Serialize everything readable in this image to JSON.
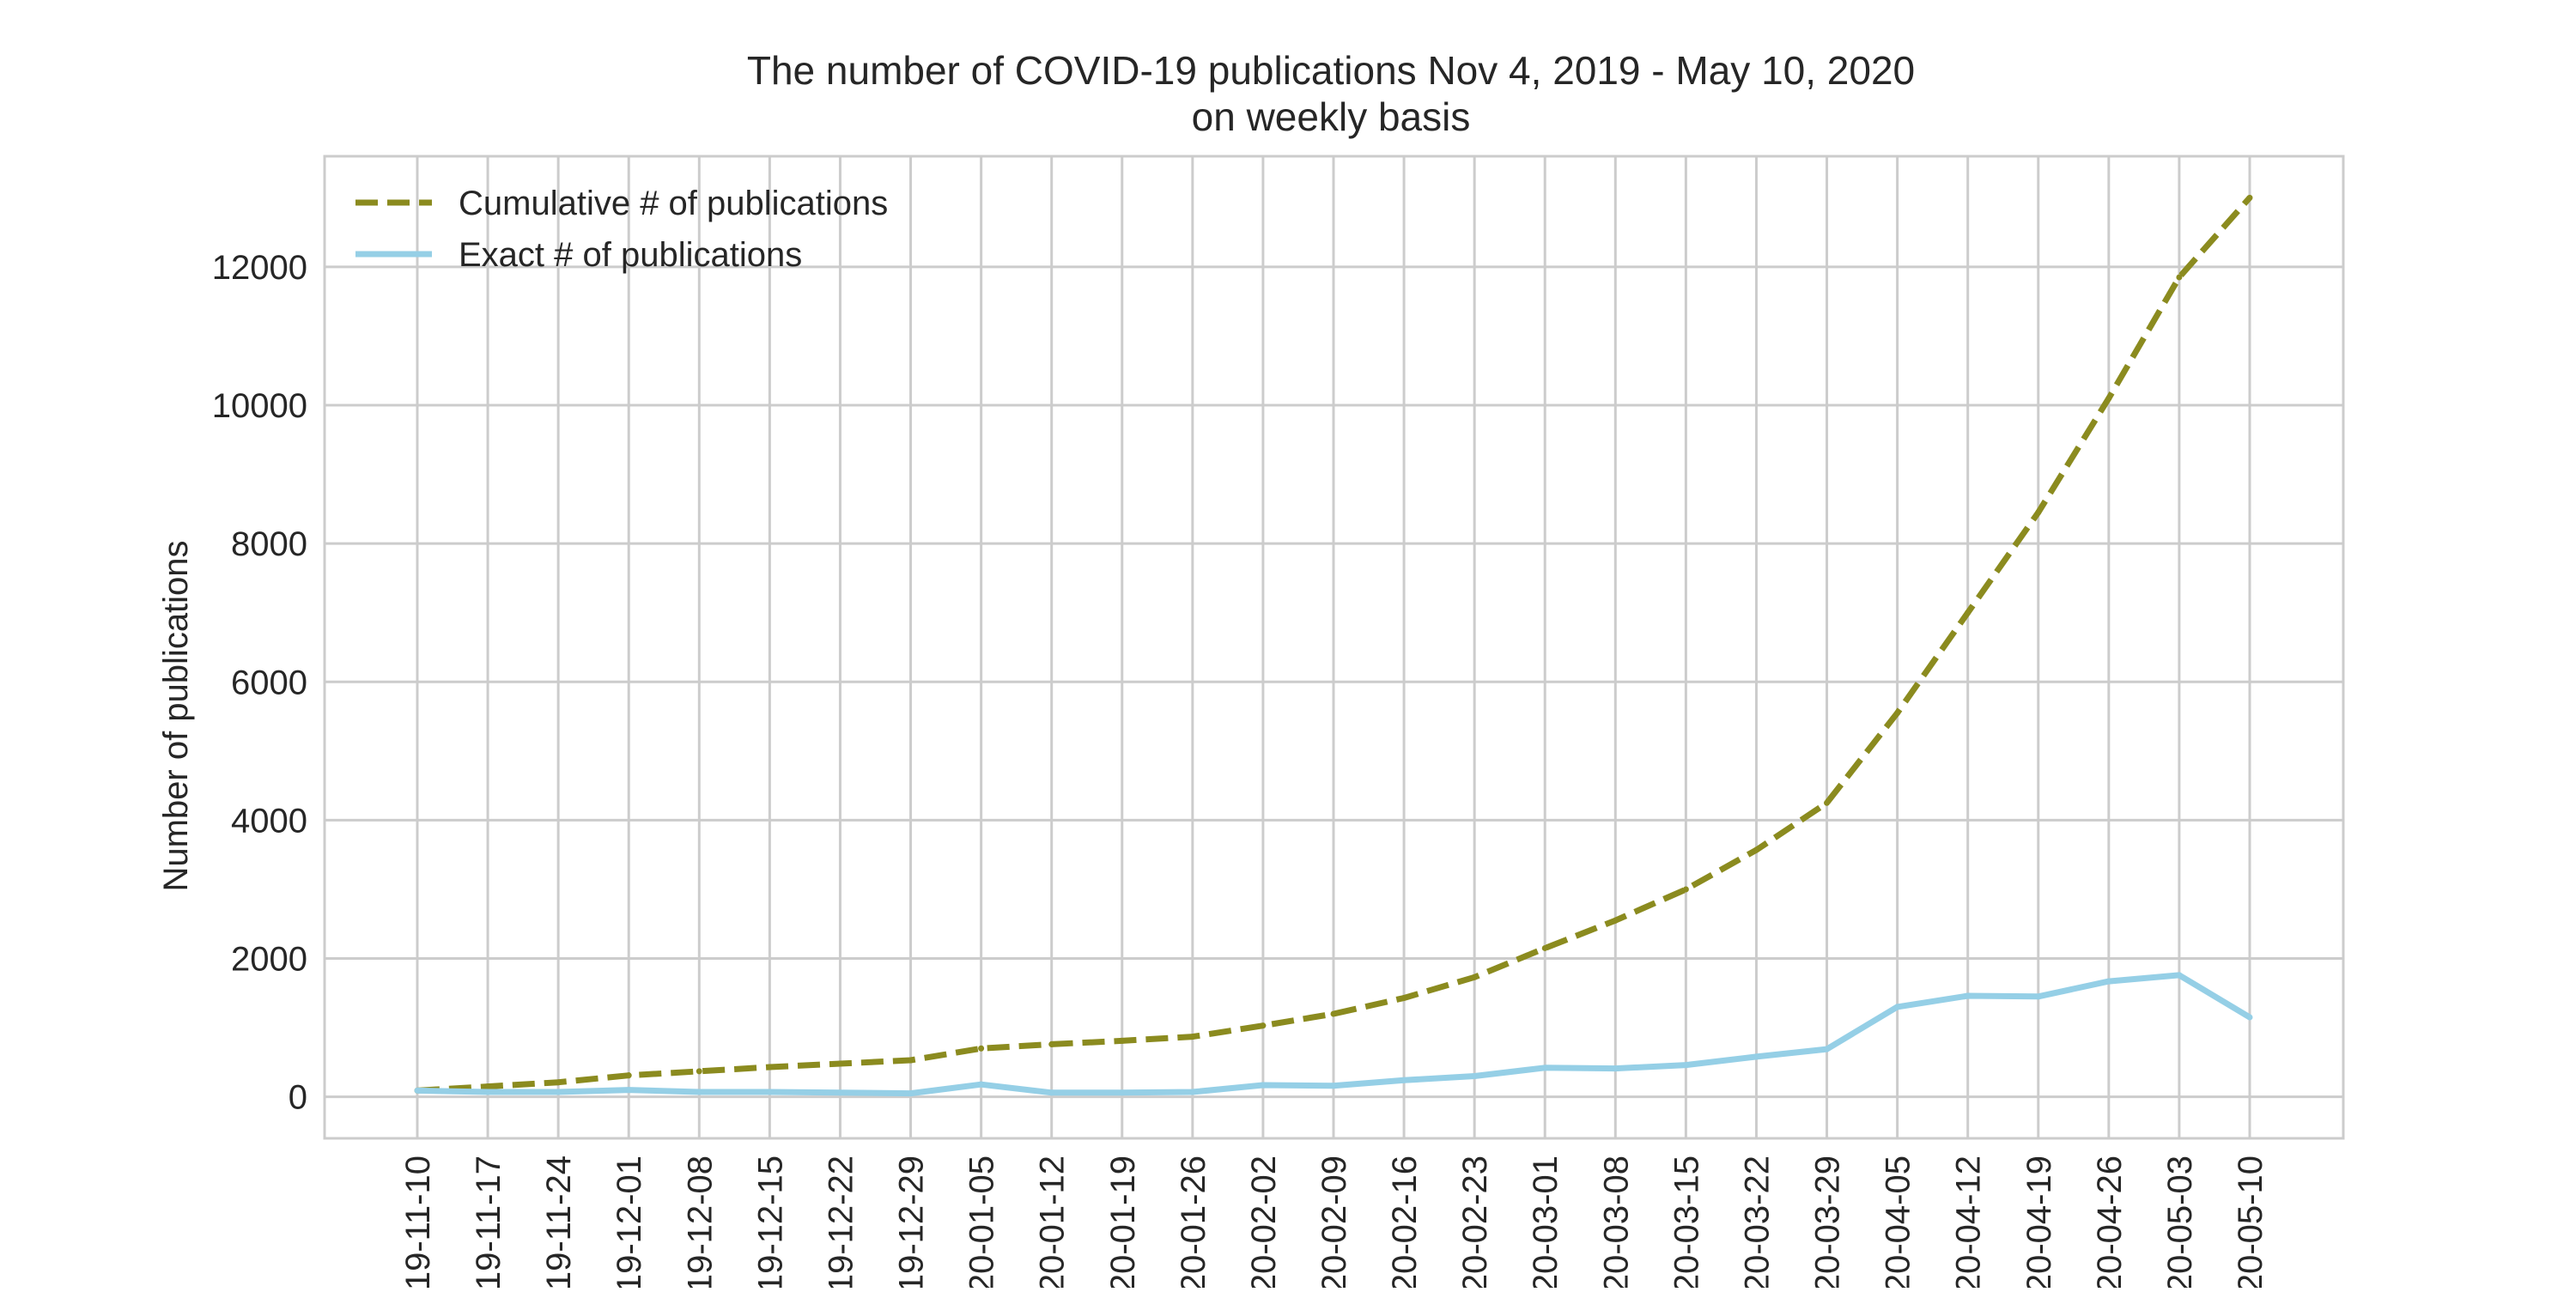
{
  "chart_data": {
    "type": "line",
    "title_line1": "The number of COVID-19 publications Nov 4, 2019 - May 10, 2020",
    "title_line2": "on weekly basis",
    "xlabel": "",
    "ylabel": "Number of publications",
    "ylim": [
      -600,
      13600
    ],
    "yticks": [
      0,
      2000,
      4000,
      6000,
      8000,
      10000,
      12000
    ],
    "grid": true,
    "legend_position": "top-left",
    "categories": [
      "19-11-10",
      "19-11-17",
      "19-11-24",
      "19-12-01",
      "19-12-08",
      "19-12-15",
      "19-12-22",
      "19-12-29",
      "20-01-05",
      "20-01-12",
      "20-01-19",
      "20-01-26",
      "20-02-02",
      "20-02-09",
      "20-02-16",
      "20-02-23",
      "20-03-01",
      "20-03-08",
      "20-03-15",
      "20-03-22",
      "20-03-29",
      "20-04-05",
      "20-04-12",
      "20-04-19",
      "20-04-26",
      "20-05-03",
      "20-05-10"
    ],
    "series": [
      {
        "name": "Cumulative # of publications",
        "style": "dashed",
        "color": "#8b8b1f",
        "values": [
          90,
          150,
          210,
          310,
          370,
          430,
          480,
          530,
          700,
          760,
          810,
          870,
          1030,
          1200,
          1430,
          1730,
          2150,
          2550,
          3000,
          3570,
          4250,
          5550,
          7000,
          8450,
          10100,
          11850,
          13000
        ]
      },
      {
        "name": "Exact # of publications",
        "style": "solid",
        "color": "#95cfe6",
        "values": [
          90,
          70,
          70,
          100,
          70,
          70,
          60,
          50,
          180,
          60,
          60,
          70,
          170,
          160,
          240,
          300,
          420,
          410,
          460,
          580,
          690,
          1300,
          1460,
          1450,
          1670,
          1760,
          1150
        ]
      }
    ]
  }
}
